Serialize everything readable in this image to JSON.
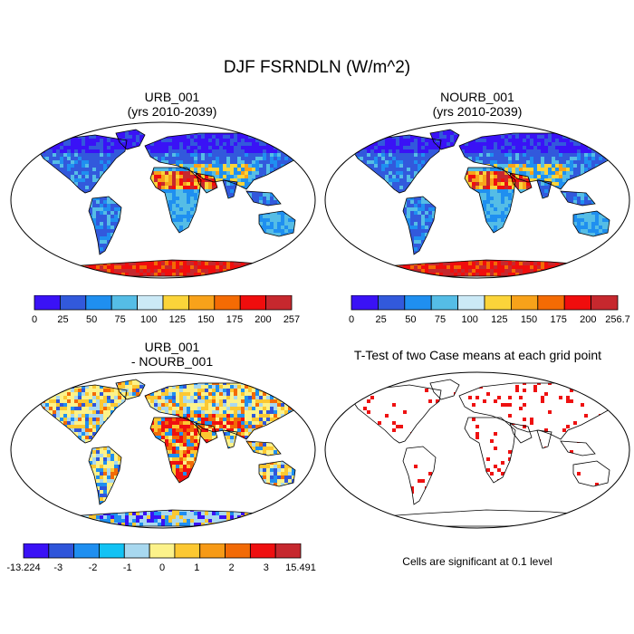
{
  "main_title": "DJF FSRNDLN (W/m^2)",
  "colors": {
    "abs_scale": [
      "#3a12f6",
      "#3259dc",
      "#1f8ff0",
      "#55bde6",
      "#cbe9f6",
      "#fbd43a",
      "#f8a21a",
      "#f46b04",
      "#f00d0d",
      "#c6282e"
    ],
    "diff_scale": [
      "#3a12f6",
      "#2f55da",
      "#1f8ff0",
      "#12c2f4",
      "#a8d8ef",
      "#fcf28a",
      "#fcc832",
      "#f79a16",
      "#f26a06",
      "#ef1010",
      "#c6282e"
    ],
    "significance": "#ee1111"
  },
  "panels": [
    {
      "title_line1": "URB_001",
      "title_line2": "(yrs 2010-2039)",
      "colorbar_labels": [
        "0",
        "25",
        "50",
        "75",
        "100",
        "125",
        "150",
        "175",
        "200",
        "257"
      ]
    },
    {
      "title_line1": "NOURB_001",
      "title_line2": "(yrs 2010-2039)",
      "colorbar_labels": [
        "0",
        "25",
        "50",
        "75",
        "100",
        "125",
        "150",
        "175",
        "200",
        "256.7"
      ]
    },
    {
      "title_line1": "URB_001",
      "title_line2": "- NOURB_001",
      "colorbar_labels": [
        "-13.224",
        "-3",
        "-2",
        "-1",
        "0",
        "1",
        "2",
        "3",
        "15.491"
      ]
    },
    {
      "title_line1": "T-Test of two Case means at each grid point",
      "note": "Cells are significant at 0.1 level"
    }
  ],
  "chart_data": [
    {
      "type": "heatmap",
      "title": "URB_001 (yrs 2010-2039)",
      "projection": "Robinson (global)",
      "color_levels": [
        0,
        25,
        50,
        75,
        100,
        125,
        150,
        175,
        200,
        257
      ]
    },
    {
      "type": "heatmap",
      "title": "NOURB_001 (yrs 2010-2039)",
      "projection": "Robinson (global)",
      "color_levels": [
        0,
        25,
        50,
        75,
        100,
        125,
        150,
        175,
        200,
        256.7
      ]
    },
    {
      "type": "heatmap",
      "title": "URB_001 - NOURB_001",
      "projection": "Robinson (global)",
      "color_levels": [
        -13.224,
        -3,
        -2,
        -1,
        0,
        1,
        2,
        3,
        15.491
      ]
    },
    {
      "type": "heatmap",
      "title": "T-Test of two Case means at each grid point",
      "projection": "Robinson (global)",
      "significance_level": 0.1
    }
  ]
}
